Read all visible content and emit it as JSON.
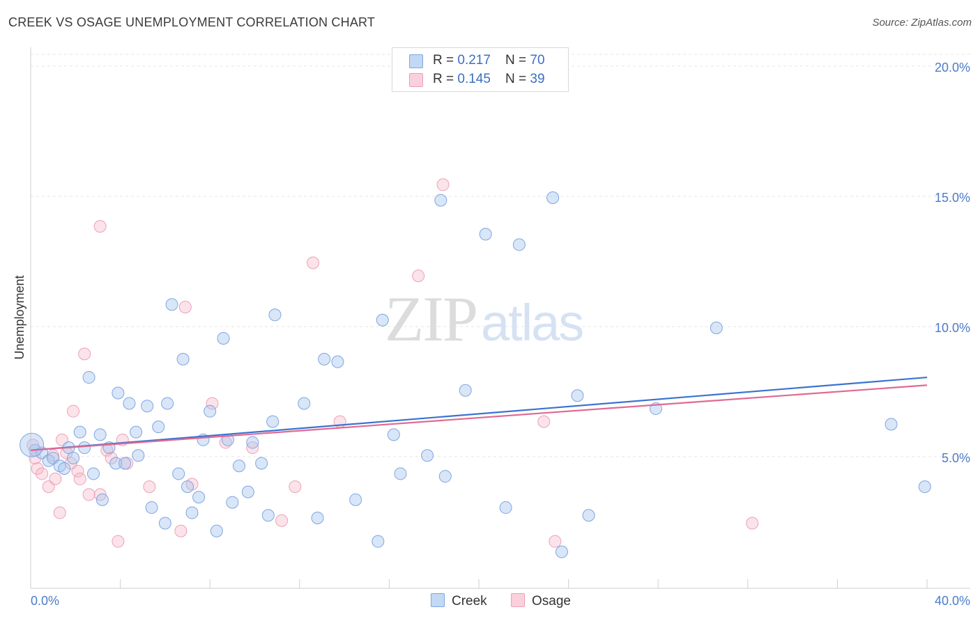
{
  "header": {
    "title": "CREEK VS OSAGE UNEMPLOYMENT CORRELATION CHART",
    "source": "Source: ZipAtlas.com"
  },
  "watermark": {
    "zip": "ZIP",
    "atlas": "atlas"
  },
  "legend": {
    "rows": [
      {
        "r_label": "R = ",
        "r_value": "0.217",
        "n_label": "N = ",
        "n_value": "70",
        "color": "#a9c8f0"
      },
      {
        "r_label": "R = ",
        "r_value": "0.145",
        "n_label": "N = ",
        "n_value": "39",
        "color": "#f5b8ca"
      }
    ]
  },
  "bottom_legend": {
    "series1": "Creek",
    "series2": "Osage"
  },
  "chart_data": {
    "type": "scatter",
    "title": "CREEK VS OSAGE UNEMPLOYMENT CORRELATION CHART",
    "xlabel": "",
    "ylabel": "Unemployment",
    "xlim": [
      0,
      40
    ],
    "ylim": [
      0,
      20
    ],
    "x_tick_labels": [
      "0.0%",
      "40.0%"
    ],
    "y_ticks": [
      5,
      10,
      15,
      20
    ],
    "y_tick_labels": [
      "5.0%",
      "10.0%",
      "15.0%",
      "20.0%"
    ],
    "grid": "horizontal dashed",
    "legend_position": "top-center",
    "colors": {
      "Creek": "#3b73d1",
      "Osage": "#e06a92"
    },
    "series": [
      {
        "name": "Creek",
        "color": "#3b73d1",
        "trend": {
          "x": [
            0,
            40
          ],
          "y": [
            5.3,
            8.1
          ]
        },
        "points": [
          [
            0.2,
            5.3
          ],
          [
            0.5,
            5.2
          ],
          [
            0.8,
            4.9
          ],
          [
            1.0,
            5.0
          ],
          [
            1.3,
            4.7
          ],
          [
            1.5,
            4.6
          ],
          [
            1.7,
            5.4
          ],
          [
            1.9,
            5.0
          ],
          [
            2.2,
            6.0
          ],
          [
            2.4,
            5.4
          ],
          [
            2.6,
            8.1
          ],
          [
            2.8,
            4.4
          ],
          [
            3.1,
            5.9
          ],
          [
            3.2,
            3.4
          ],
          [
            3.5,
            5.4
          ],
          [
            3.8,
            4.8
          ],
          [
            3.9,
            7.5
          ],
          [
            4.2,
            4.8
          ],
          [
            4.4,
            7.1
          ],
          [
            4.7,
            6.0
          ],
          [
            4.8,
            5.1
          ],
          [
            5.2,
            7.0
          ],
          [
            5.4,
            3.1
          ],
          [
            5.7,
            6.2
          ],
          [
            6.0,
            2.5
          ],
          [
            6.1,
            7.1
          ],
          [
            6.3,
            10.9
          ],
          [
            6.6,
            4.4
          ],
          [
            6.8,
            8.8
          ],
          [
            7.0,
            3.9
          ],
          [
            7.2,
            2.9
          ],
          [
            7.5,
            3.5
          ],
          [
            7.7,
            5.7
          ],
          [
            8.0,
            6.8
          ],
          [
            8.3,
            2.2
          ],
          [
            8.6,
            9.6
          ],
          [
            8.8,
            5.7
          ],
          [
            9.0,
            3.3
          ],
          [
            9.3,
            4.7
          ],
          [
            9.7,
            3.7
          ],
          [
            9.9,
            5.6
          ],
          [
            10.3,
            4.8
          ],
          [
            10.6,
            2.8
          ],
          [
            10.8,
            6.4
          ],
          [
            10.9,
            10.5
          ],
          [
            12.2,
            7.1
          ],
          [
            12.8,
            2.7
          ],
          [
            13.1,
            8.8
          ],
          [
            13.7,
            8.7
          ],
          [
            14.5,
            3.4
          ],
          [
            15.5,
            1.8
          ],
          [
            15.7,
            10.3
          ],
          [
            16.2,
            5.9
          ],
          [
            16.5,
            4.4
          ],
          [
            17.7,
            5.1
          ],
          [
            18.3,
            14.9
          ],
          [
            18.5,
            4.3
          ],
          [
            19.4,
            7.6
          ],
          [
            20.3,
            13.6
          ],
          [
            21.2,
            3.1
          ],
          [
            21.8,
            13.2
          ],
          [
            23.3,
            15.0
          ],
          [
            23.7,
            1.4
          ],
          [
            24.4,
            7.4
          ],
          [
            24.9,
            2.8
          ],
          [
            27.9,
            6.9
          ],
          [
            30.6,
            10.0
          ],
          [
            38.4,
            6.3
          ],
          [
            39.9,
            3.9
          ],
          [
            0.05,
            5.5
          ]
        ]
      },
      {
        "name": "Osage",
        "color": "#e06a92",
        "trend": {
          "x": [
            0,
            40
          ],
          "y": [
            5.3,
            7.8
          ]
        },
        "points": [
          [
            0.1,
            5.5
          ],
          [
            0.3,
            4.6
          ],
          [
            0.5,
            4.4
          ],
          [
            0.8,
            3.9
          ],
          [
            1.1,
            4.2
          ],
          [
            1.3,
            2.9
          ],
          [
            1.4,
            5.7
          ],
          [
            1.6,
            5.2
          ],
          [
            1.8,
            4.8
          ],
          [
            1.9,
            6.8
          ],
          [
            2.1,
            4.5
          ],
          [
            2.2,
            4.2
          ],
          [
            2.4,
            9.0
          ],
          [
            2.6,
            3.6
          ],
          [
            3.1,
            3.6
          ],
          [
            3.1,
            13.9
          ],
          [
            3.4,
            5.3
          ],
          [
            3.6,
            5.0
          ],
          [
            3.9,
            1.8
          ],
          [
            4.1,
            5.7
          ],
          [
            4.3,
            4.8
          ],
          [
            5.3,
            3.9
          ],
          [
            6.7,
            2.2
          ],
          [
            6.9,
            10.8
          ],
          [
            7.2,
            4.0
          ],
          [
            8.1,
            7.1
          ],
          [
            8.7,
            5.6
          ],
          [
            9.9,
            5.4
          ],
          [
            11.2,
            2.6
          ],
          [
            11.8,
            3.9
          ],
          [
            12.6,
            12.5
          ],
          [
            13.8,
            6.4
          ],
          [
            17.3,
            12.0
          ],
          [
            18.4,
            15.5
          ],
          [
            22.9,
            6.4
          ],
          [
            23.4,
            1.8
          ],
          [
            32.2,
            2.5
          ],
          [
            0.2,
            5.0
          ],
          [
            1.0,
            5.1
          ]
        ]
      }
    ]
  }
}
